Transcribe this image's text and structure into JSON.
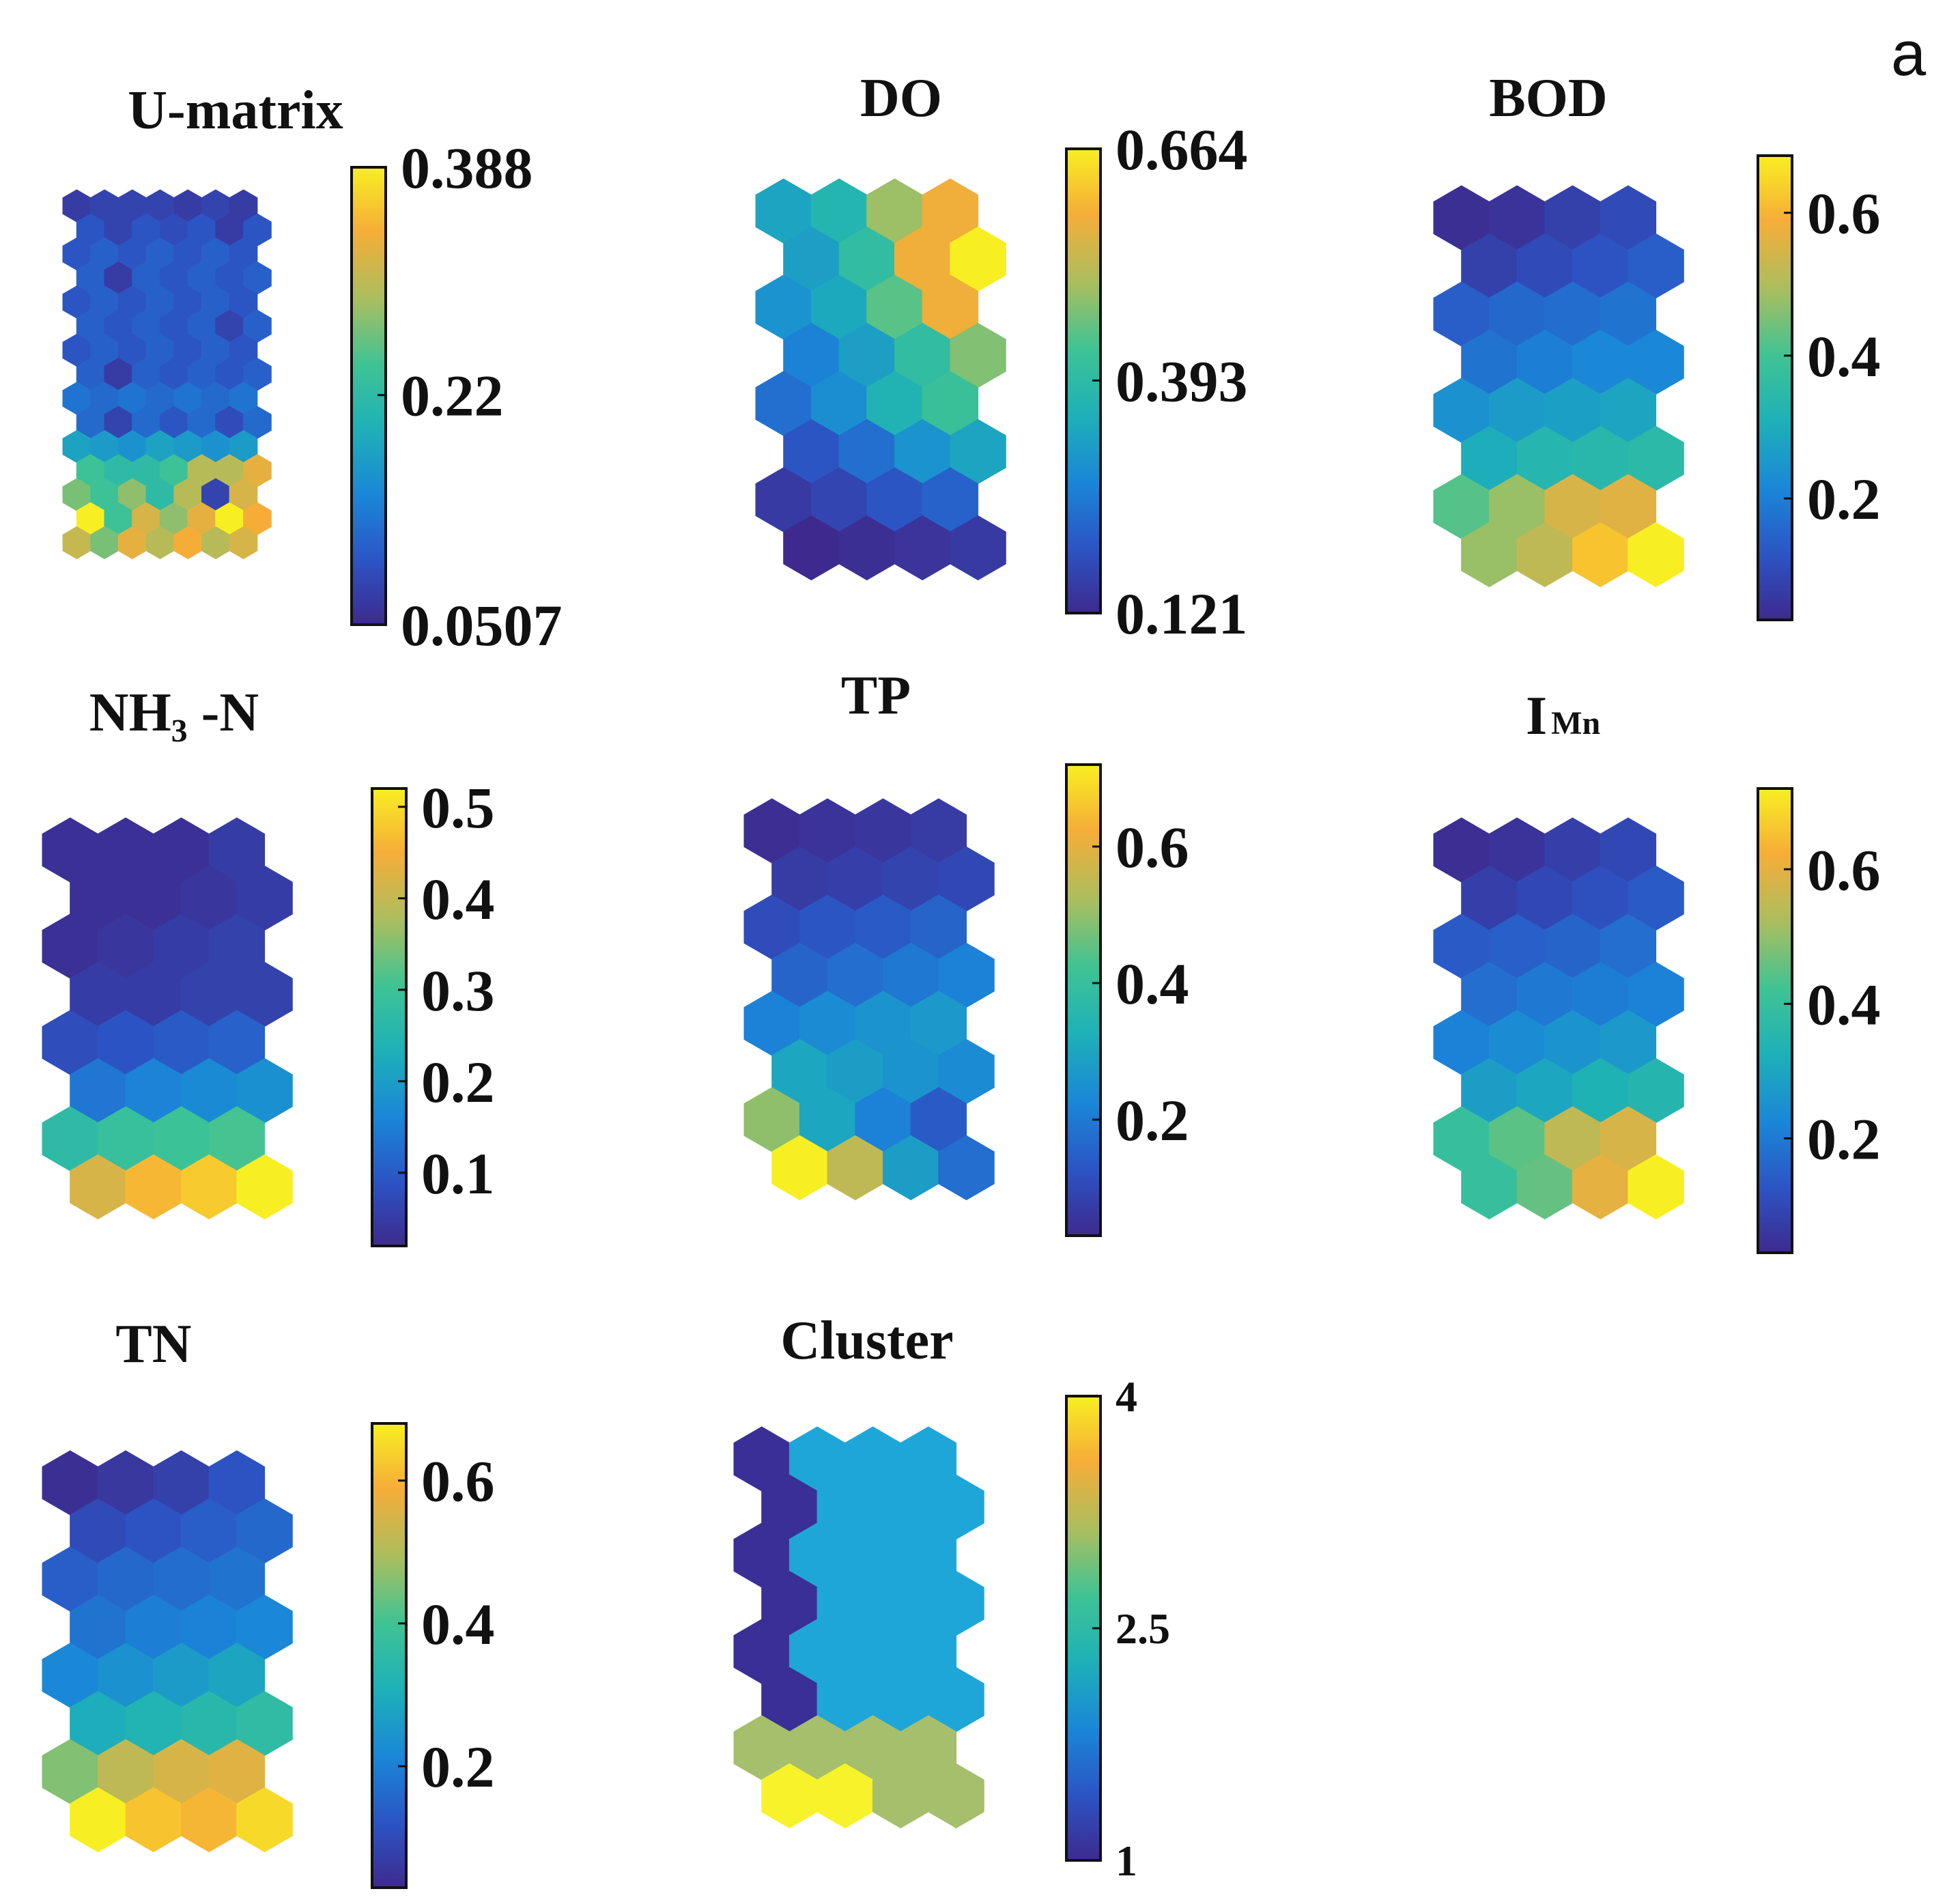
{
  "figure": {
    "panel_label": "a"
  },
  "palette": {
    "stops": [
      "#3e2a8e",
      "#2c54c4",
      "#1a86d8",
      "#1eb1b7",
      "#3fc394",
      "#a9be5f",
      "#f6ad38",
      "#f8ef22"
    ],
    "cluster_colors": {
      "1": "#3a2f96",
      "2": "#1fa6d9",
      "3": "#a6bf6c",
      "4": "#f7f229"
    }
  },
  "chart_data": [
    {
      "type": "heatmap",
      "name": "u-matrix",
      "title": "U-matrix",
      "grid": "hexagonal SOM, 4 columns x 8 rows (U-matrix resolution 7 x 15)",
      "colorbar": {
        "range": [
          0.0507,
          0.388
        ],
        "ticks": [
          "0.388",
          "0.22",
          "0.0507"
        ],
        "tick_values": [
          0.388,
          0.22,
          0.0507
        ]
      },
      "values": [
        [
          0.07,
          0.08,
          0.08,
          0.08,
          0.07,
          0.08,
          0.07
        ],
        [
          0.1,
          0.08,
          0.1,
          0.09,
          0.1,
          0.07,
          0.1
        ],
        [
          0.1,
          0.11,
          0.1,
          0.11,
          0.1,
          0.11,
          0.1
        ],
        [
          0.11,
          0.07,
          0.11,
          0.1,
          0.11,
          0.1,
          0.11
        ],
        [
          0.1,
          0.11,
          0.1,
          0.11,
          0.1,
          0.11,
          0.1
        ],
        [
          0.11,
          0.1,
          0.11,
          0.1,
          0.11,
          0.08,
          0.11
        ],
        [
          0.1,
          0.11,
          0.1,
          0.11,
          0.1,
          0.11,
          0.1
        ],
        [
          0.11,
          0.07,
          0.11,
          0.1,
          0.11,
          0.1,
          0.11
        ],
        [
          0.13,
          0.12,
          0.13,
          0.12,
          0.13,
          0.12,
          0.13
        ],
        [
          0.12,
          0.08,
          0.12,
          0.1,
          0.12,
          0.09,
          0.12
        ],
        [
          0.18,
          0.17,
          0.16,
          0.18,
          0.17,
          0.16,
          0.17
        ],
        [
          0.24,
          0.22,
          0.22,
          0.24,
          0.3,
          0.3,
          0.33
        ],
        [
          0.27,
          0.24,
          0.28,
          0.22,
          0.3,
          0.08,
          0.32
        ],
        [
          0.388,
          0.24,
          0.32,
          0.28,
          0.33,
          0.388,
          0.34
        ],
        [
          0.31,
          0.27,
          0.33,
          0.3,
          0.34,
          0.3,
          0.32
        ]
      ]
    },
    {
      "type": "heatmap",
      "name": "do",
      "title": "DO",
      "grid": "hexagonal SOM, 4 columns x 8 rows",
      "colorbar": {
        "range": [
          0.121,
          0.664
        ],
        "ticks": [
          "0.664",
          "0.393",
          "0.121"
        ],
        "tick_values": [
          0.664,
          0.393,
          0.121
        ]
      },
      "values": [
        [
          0.33,
          0.37,
          0.5,
          0.58
        ],
        [
          0.32,
          0.4,
          0.58,
          0.664
        ],
        [
          0.3,
          0.34,
          0.45,
          0.58
        ],
        [
          0.27,
          0.32,
          0.4,
          0.48
        ],
        [
          0.24,
          0.29,
          0.36,
          0.42
        ],
        [
          0.2,
          0.24,
          0.3,
          0.33
        ],
        [
          0.15,
          0.17,
          0.2,
          0.22
        ],
        [
          0.121,
          0.13,
          0.14,
          0.15
        ]
      ]
    },
    {
      "type": "heatmap",
      "name": "bod",
      "title": "BOD",
      "grid": "hexagonal SOM, 4 columns x 8 rows",
      "colorbar": {
        "range": [
          0.03,
          0.68
        ],
        "ticks": [
          "0.6",
          "0.4",
          "0.2"
        ],
        "tick_values": [
          0.6,
          0.4,
          0.2
        ]
      },
      "values": [
        [
          0.04,
          0.05,
          0.08,
          0.1
        ],
        [
          0.08,
          0.1,
          0.12,
          0.14
        ],
        [
          0.14,
          0.16,
          0.17,
          0.18
        ],
        [
          0.18,
          0.2,
          0.22,
          0.22
        ],
        [
          0.24,
          0.26,
          0.27,
          0.28
        ],
        [
          0.3,
          0.33,
          0.34,
          0.35
        ],
        [
          0.42,
          0.48,
          0.55,
          0.56
        ],
        [
          0.48,
          0.52,
          0.62,
          0.68
        ]
      ]
    },
    {
      "type": "heatmap",
      "name": "nh3-n",
      "title": "NH₃ -N",
      "grid": "hexagonal SOM, 4 columns x 8 rows",
      "colorbar": {
        "range": [
          0.02,
          0.52
        ],
        "ticks": [
          "0.5",
          "0.4",
          "0.3",
          "0.2",
          "0.1"
        ],
        "tick_values": [
          0.5,
          0.4,
          0.3,
          0.2,
          0.1
        ]
      },
      "values": [
        [
          0.03,
          0.03,
          0.03,
          0.05
        ],
        [
          0.03,
          0.03,
          0.04,
          0.05
        ],
        [
          0.03,
          0.04,
          0.05,
          0.06
        ],
        [
          0.05,
          0.05,
          0.06,
          0.06
        ],
        [
          0.08,
          0.09,
          0.1,
          0.11
        ],
        [
          0.14,
          0.16,
          0.17,
          0.18
        ],
        [
          0.27,
          0.29,
          0.3,
          0.31
        ],
        [
          0.42,
          0.46,
          0.48,
          0.52
        ]
      ]
    },
    {
      "type": "heatmap",
      "name": "tp",
      "title": "TP",
      "grid": "hexagonal SOM, 4 columns x 8 rows",
      "colorbar": {
        "range": [
          0.03,
          0.72
        ],
        "ticks": [
          "0.6",
          "0.4",
          "0.2"
        ],
        "tick_values": [
          0.6,
          0.4,
          0.2
        ]
      },
      "values": [
        [
          0.04,
          0.05,
          0.06,
          0.07
        ],
        [
          0.07,
          0.08,
          0.09,
          0.1
        ],
        [
          0.11,
          0.13,
          0.14,
          0.16
        ],
        [
          0.16,
          0.18,
          0.2,
          0.22
        ],
        [
          0.22,
          0.24,
          0.26,
          0.27
        ],
        [
          0.3,
          0.28,
          0.26,
          0.24
        ],
        [
          0.5,
          0.3,
          0.22,
          0.14
        ],
        [
          0.72,
          0.55,
          0.28,
          0.18
        ]
      ]
    },
    {
      "type": "heatmap",
      "name": "imn",
      "title": "IMn",
      "title_main": "I",
      "title_sub": "Mn",
      "grid": "hexagonal SOM, 4 columns x 8 rows",
      "colorbar": {
        "range": [
          0.03,
          0.72
        ],
        "ticks": [
          "0.6",
          "0.4",
          "0.2"
        ],
        "tick_values": [
          0.6,
          0.4,
          0.2
        ]
      },
      "values": [
        [
          0.04,
          0.05,
          0.08,
          0.1
        ],
        [
          0.08,
          0.1,
          0.12,
          0.14
        ],
        [
          0.14,
          0.15,
          0.16,
          0.18
        ],
        [
          0.18,
          0.2,
          0.21,
          0.22
        ],
        [
          0.22,
          0.24,
          0.26,
          0.27
        ],
        [
          0.28,
          0.3,
          0.33,
          0.35
        ],
        [
          0.4,
          0.45,
          0.55,
          0.58
        ],
        [
          0.4,
          0.46,
          0.6,
          0.72
        ]
      ]
    },
    {
      "type": "heatmap",
      "name": "tn",
      "title": "TN",
      "grid": "hexagonal SOM, 4 columns x 8 rows",
      "colorbar": {
        "range": [
          0.03,
          0.68
        ],
        "ticks": [
          "0.6",
          "0.4",
          "0.2"
        ],
        "tick_values": [
          0.6,
          0.4,
          0.2
        ]
      },
      "values": [
        [
          0.04,
          0.06,
          0.08,
          0.12
        ],
        [
          0.1,
          0.12,
          0.14,
          0.16
        ],
        [
          0.14,
          0.16,
          0.17,
          0.18
        ],
        [
          0.18,
          0.2,
          0.21,
          0.22
        ],
        [
          0.22,
          0.24,
          0.26,
          0.28
        ],
        [
          0.3,
          0.32,
          0.34,
          0.36
        ],
        [
          0.46,
          0.52,
          0.55,
          0.56
        ],
        [
          0.68,
          0.62,
          0.6,
          0.65
        ]
      ]
    },
    {
      "type": "heatmap",
      "name": "cluster",
      "title": "Cluster",
      "grid": "hexagonal SOM, 4 columns x 8 rows (categorical)",
      "colorbar": {
        "range": [
          1,
          4
        ],
        "ticks": [
          "4",
          "2.5",
          "1"
        ],
        "tick_values": [
          4,
          2.5,
          1
        ]
      },
      "values": [
        [
          1,
          2,
          2,
          2
        ],
        [
          1,
          2,
          2,
          2
        ],
        [
          1,
          2,
          2,
          2
        ],
        [
          1,
          2,
          2,
          2
        ],
        [
          1,
          2,
          2,
          2
        ],
        [
          1,
          2,
          2,
          2
        ],
        [
          3,
          3,
          3,
          3
        ],
        [
          4,
          4,
          3,
          3
        ]
      ]
    }
  ]
}
